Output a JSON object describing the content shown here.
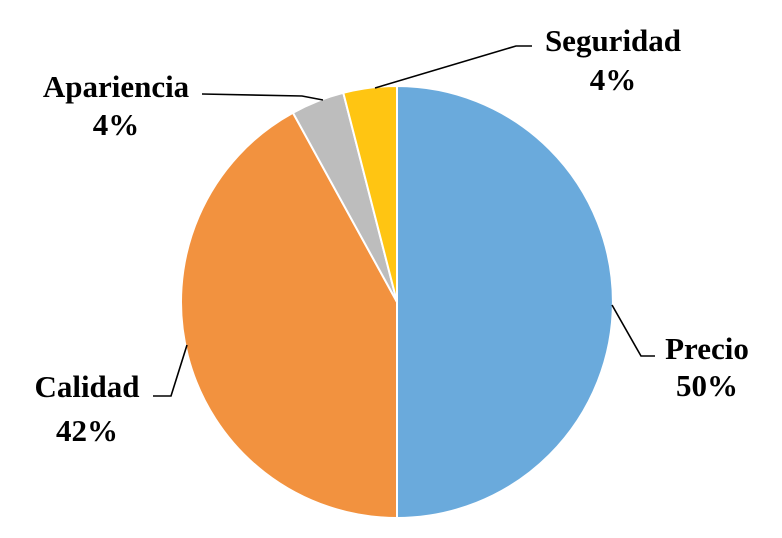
{
  "chart_data": {
    "type": "pie",
    "title": "",
    "start_angle_deg": 0,
    "direction": "clockwise",
    "slices": [
      {
        "label": "Precio",
        "value": 50,
        "value_label": "50%",
        "color": "#6AAADC"
      },
      {
        "label": "Calidad",
        "value": 42,
        "value_label": "42%",
        "color": "#F2923F"
      },
      {
        "label": "Apariencia",
        "value": 4,
        "value_label": "4%",
        "color": "#BDBDBD"
      },
      {
        "label": "Seguridad",
        "value": 4,
        "value_label": "4%",
        "color": "#FFC512"
      }
    ],
    "legend": "none",
    "data_labels": "outside-with-leader-lines"
  }
}
